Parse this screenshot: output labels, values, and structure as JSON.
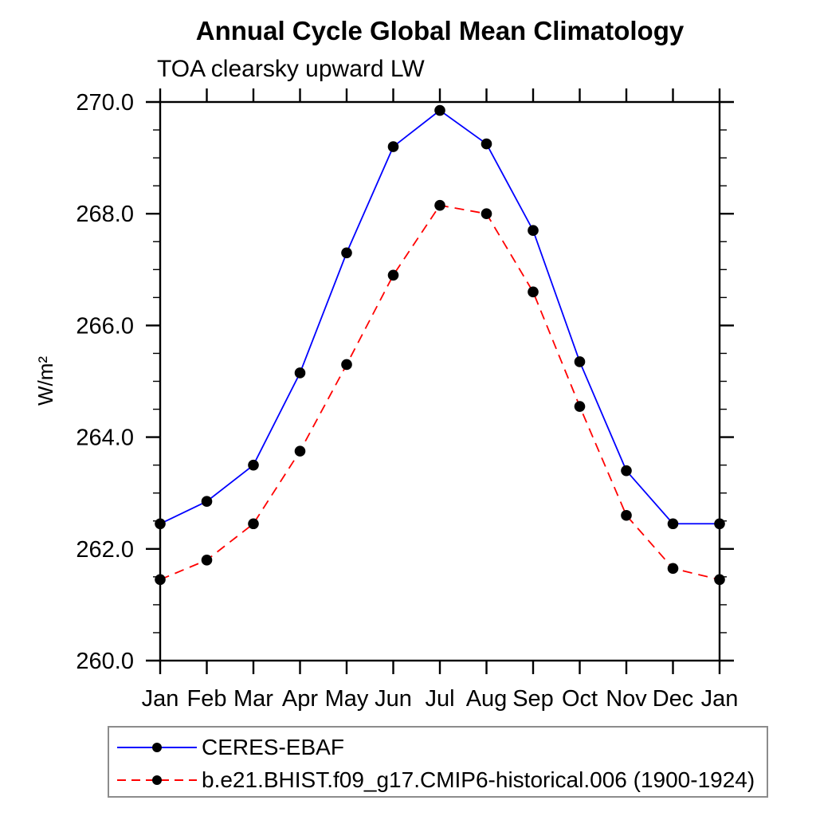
{
  "chart_data": {
    "type": "line",
    "title": "Annual Cycle Global Mean Climatology",
    "subtitle": "TOA clearsky upward LW",
    "ylabel": "W/m²",
    "xlabel": "",
    "x_categories": [
      "Jan",
      "Feb",
      "Mar",
      "Apr",
      "May",
      "Jun",
      "Jul",
      "Aug",
      "Sep",
      "Oct",
      "Nov",
      "Dec",
      "Jan"
    ],
    "ylim": [
      260.0,
      270.0
    ],
    "y_major_ticks": [
      260.0,
      262.0,
      264.0,
      266.0,
      268.0,
      270.0
    ],
    "y_major_tick_labels": [
      "260.0",
      "262.0",
      "264.0",
      "266.0",
      "268.0",
      "270.0"
    ],
    "y_minor_step": 0.5,
    "grid": "off",
    "legend_position": "bottom",
    "marker_color": "#000000",
    "series": [
      {
        "name": "CERES-EBAF",
        "color": "#0000ff",
        "line_style": "solid",
        "marker": "dot",
        "values": [
          262.45,
          262.85,
          263.5,
          265.15,
          267.3,
          269.2,
          269.85,
          269.25,
          267.7,
          265.35,
          263.4,
          262.45,
          262.45
        ]
      },
      {
        "name": "b.e21.BHIST.f09_g17.CMIP6-historical.006 (1900-1924)",
        "color": "#ff0000",
        "line_style": "dashed",
        "marker": "dot",
        "values": [
          261.45,
          261.8,
          262.45,
          263.75,
          265.3,
          266.9,
          268.15,
          268.0,
          266.6,
          264.55,
          262.6,
          261.65,
          261.45
        ]
      }
    ]
  }
}
